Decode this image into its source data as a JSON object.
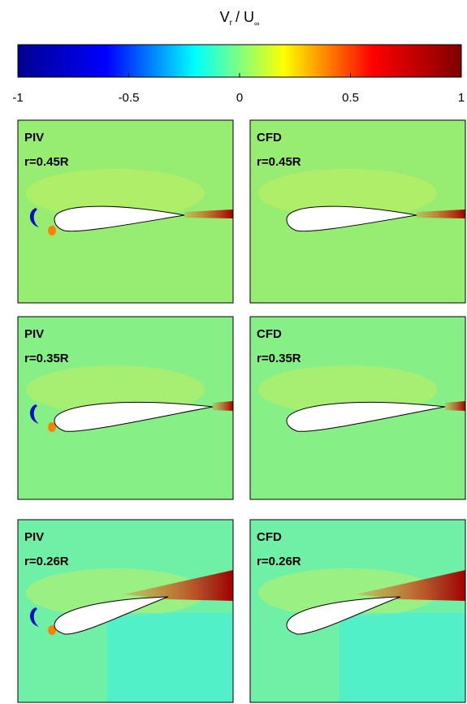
{
  "chart_data": {
    "type": "field-panels",
    "title_parts": [
      "V",
      "r",
      "/ U",
      "∞"
    ],
    "clim": [
      -1,
      1
    ],
    "cticks": [
      -1,
      -0.5,
      0,
      0.5,
      1
    ],
    "colors": [
      "#00008f",
      "#0000ff",
      "#00ffff",
      "#ffff00",
      "#ff0000",
      "#800000"
    ],
    "panels": [
      {
        "method": "PIV",
        "radius": "r=0.45R"
      },
      {
        "method": "CFD",
        "radius": "r=0.45R"
      },
      {
        "method": "PIV",
        "radius": "r=0.35R"
      },
      {
        "method": "CFD",
        "radius": "r=0.35R"
      },
      {
        "method": "PIV",
        "radius": "r=0.26R"
      },
      {
        "method": "CFD",
        "radius": "r=0.26R"
      }
    ]
  }
}
